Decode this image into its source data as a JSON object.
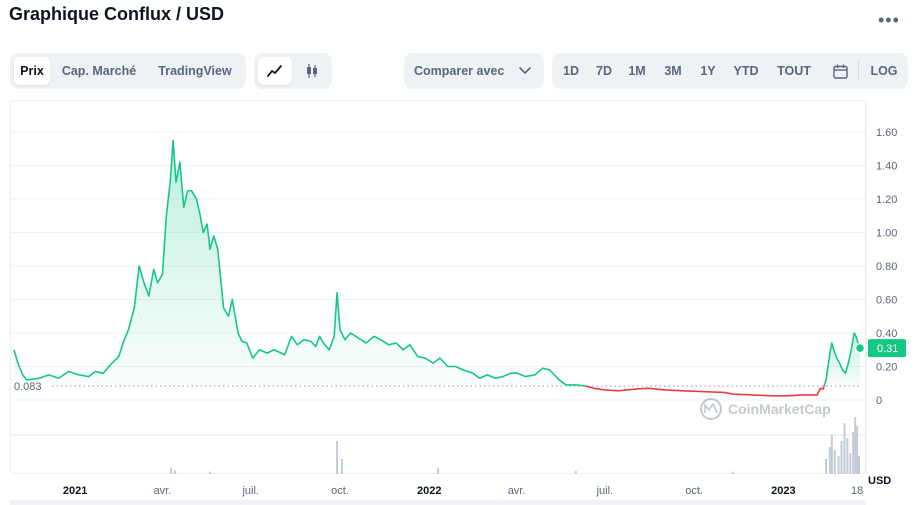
{
  "header": {
    "title": "Graphique Conflux / USD",
    "more_icon": "more-horizontal-icon"
  },
  "tabs": {
    "items": [
      "Prix",
      "Cap. Marché",
      "TradingView"
    ],
    "active": "Prix"
  },
  "chart_type_toggle": {
    "line_icon": "line-chart-icon",
    "candle_icon": "candlestick-icon",
    "active": "line"
  },
  "compare": {
    "label": "Comparer avec",
    "icon": "chevron-down-icon"
  },
  "ranges": {
    "items": [
      "1D",
      "7D",
      "1M",
      "3M",
      "1Y",
      "YTD",
      "TOUT"
    ],
    "calendar_icon": "calendar-icon",
    "log_label": "LOG"
  },
  "watermark": "CoinMarketCap",
  "colors": {
    "up": "#16c784",
    "down": "#ea3943",
    "baseline": "#a6b0c3"
  },
  "chart_data": {
    "type": "line",
    "xlabel": "",
    "ylabel": "",
    "y_unit": "USD",
    "ylim": [
      0,
      1.6
    ],
    "y_ticks": [
      "0",
      "0.20",
      "0.40",
      "0.60",
      "0.80",
      "1.00",
      "1.20",
      "1.40",
      "1.60"
    ],
    "x_range": [
      "2020-10-30",
      "2023-03-21"
    ],
    "x_ticks": [
      {
        "date": "2021-01-01",
        "label": "2021",
        "year": true
      },
      {
        "date": "2021-04-01",
        "label": "avr.",
        "year": false
      },
      {
        "date": "2021-07-01",
        "label": "juil.",
        "year": false
      },
      {
        "date": "2021-10-01",
        "label": "oct.",
        "year": false
      },
      {
        "date": "2022-01-01",
        "label": "2022",
        "year": true
      },
      {
        "date": "2022-04-01",
        "label": "avr.",
        "year": false
      },
      {
        "date": "2022-07-01",
        "label": "juil.",
        "year": false
      },
      {
        "date": "2022-10-01",
        "label": "oct.",
        "year": false
      },
      {
        "date": "2023-01-01",
        "label": "2023",
        "year": true
      },
      {
        "date": "2023-03-18",
        "label": "18",
        "year": false
      }
    ],
    "baseline": {
      "value": 0.083,
      "label": "0.083"
    },
    "current": {
      "value": 0.31,
      "label": "0.31"
    },
    "series": [
      {
        "points": [
          [
            "2020-10-30",
            0.3
          ],
          [
            "2020-11-03",
            0.22
          ],
          [
            "2020-11-08",
            0.15
          ],
          [
            "2020-11-12",
            0.12
          ],
          [
            "2020-11-25",
            0.13
          ],
          [
            "2020-12-05",
            0.15
          ],
          [
            "2020-12-15",
            0.13
          ],
          [
            "2020-12-25",
            0.17
          ],
          [
            "2021-01-05",
            0.15
          ],
          [
            "2021-01-15",
            0.14
          ],
          [
            "2021-01-22",
            0.17
          ],
          [
            "2021-01-30",
            0.16
          ],
          [
            "2021-02-08",
            0.22
          ],
          [
            "2021-02-15",
            0.26
          ],
          [
            "2021-02-20",
            0.35
          ],
          [
            "2021-02-25",
            0.42
          ],
          [
            "2021-03-03",
            0.55
          ],
          [
            "2021-03-08",
            0.8
          ],
          [
            "2021-03-13",
            0.7
          ],
          [
            "2021-03-18",
            0.62
          ],
          [
            "2021-03-23",
            0.78
          ],
          [
            "2021-03-27",
            0.7
          ],
          [
            "2021-04-01",
            0.75
          ],
          [
            "2021-04-05",
            1.1
          ],
          [
            "2021-04-09",
            1.3
          ],
          [
            "2021-04-12",
            1.55
          ],
          [
            "2021-04-15",
            1.3
          ],
          [
            "2021-04-19",
            1.42
          ],
          [
            "2021-04-23",
            1.15
          ],
          [
            "2021-04-27",
            1.25
          ],
          [
            "2021-05-01",
            1.25
          ],
          [
            "2021-05-06",
            1.2
          ],
          [
            "2021-05-10",
            1.1
          ],
          [
            "2021-05-13",
            1.0
          ],
          [
            "2021-05-17",
            1.05
          ],
          [
            "2021-05-20",
            0.9
          ],
          [
            "2021-05-24",
            0.98
          ],
          [
            "2021-05-28",
            0.9
          ],
          [
            "2021-06-03",
            0.55
          ],
          [
            "2021-06-08",
            0.5
          ],
          [
            "2021-06-12",
            0.6
          ],
          [
            "2021-06-18",
            0.4
          ],
          [
            "2021-06-22",
            0.35
          ],
          [
            "2021-06-27",
            0.34
          ],
          [
            "2021-07-03",
            0.25
          ],
          [
            "2021-07-10",
            0.3
          ],
          [
            "2021-07-18",
            0.28
          ],
          [
            "2021-07-25",
            0.3
          ],
          [
            "2021-08-05",
            0.27
          ],
          [
            "2021-08-12",
            0.38
          ],
          [
            "2021-08-18",
            0.33
          ],
          [
            "2021-08-25",
            0.36
          ],
          [
            "2021-09-01",
            0.35
          ],
          [
            "2021-09-06",
            0.32
          ],
          [
            "2021-09-10",
            0.38
          ],
          [
            "2021-09-14",
            0.34
          ],
          [
            "2021-09-20",
            0.3
          ],
          [
            "2021-09-25",
            0.38
          ],
          [
            "2021-09-28",
            0.64
          ],
          [
            "2021-10-01",
            0.42
          ],
          [
            "2021-10-06",
            0.36
          ],
          [
            "2021-10-12",
            0.4
          ],
          [
            "2021-10-20",
            0.37
          ],
          [
            "2021-10-28",
            0.34
          ],
          [
            "2021-11-05",
            0.38
          ],
          [
            "2021-11-12",
            0.36
          ],
          [
            "2021-11-20",
            0.33
          ],
          [
            "2021-11-28",
            0.34
          ],
          [
            "2021-12-05",
            0.3
          ],
          [
            "2021-12-12",
            0.33
          ],
          [
            "2021-12-20",
            0.26
          ],
          [
            "2021-12-28",
            0.25
          ],
          [
            "2022-01-05",
            0.22
          ],
          [
            "2022-01-12",
            0.25
          ],
          [
            "2022-01-20",
            0.2
          ],
          [
            "2022-01-28",
            0.2
          ],
          [
            "2022-02-05",
            0.18
          ],
          [
            "2022-02-15",
            0.16
          ],
          [
            "2022-02-22",
            0.13
          ],
          [
            "2022-03-02",
            0.15
          ],
          [
            "2022-03-10",
            0.13
          ],
          [
            "2022-03-18",
            0.14
          ],
          [
            "2022-03-26",
            0.16
          ],
          [
            "2022-04-02",
            0.16
          ],
          [
            "2022-04-10",
            0.14
          ],
          [
            "2022-04-20",
            0.15
          ],
          [
            "2022-04-28",
            0.19
          ],
          [
            "2022-05-05",
            0.18
          ],
          [
            "2022-05-10",
            0.15
          ],
          [
            "2022-05-15",
            0.12
          ],
          [
            "2022-05-22",
            0.09
          ],
          [
            "2022-06-01",
            0.09
          ],
          [
            "2022-06-10",
            0.085
          ],
          [
            "2022-06-20",
            0.07
          ],
          [
            "2022-07-01",
            0.06
          ],
          [
            "2022-07-15",
            0.055
          ],
          [
            "2022-08-01",
            0.065
          ],
          [
            "2022-08-15",
            0.07
          ],
          [
            "2022-09-01",
            0.06
          ],
          [
            "2022-09-20",
            0.055
          ],
          [
            "2022-10-10",
            0.05
          ],
          [
            "2022-11-01",
            0.045
          ],
          [
            "2022-11-10",
            0.035
          ],
          [
            "2022-12-01",
            0.03
          ],
          [
            "2022-12-20",
            0.025
          ],
          [
            "2023-01-05",
            0.025
          ],
          [
            "2023-01-20",
            0.03
          ],
          [
            "2023-02-05",
            0.03
          ],
          [
            "2023-02-08",
            0.07
          ],
          [
            "2023-02-11",
            0.065
          ],
          [
            "2023-02-14",
            0.12
          ],
          [
            "2023-02-16",
            0.2
          ],
          [
            "2023-02-18",
            0.28
          ],
          [
            "2023-02-20",
            0.34
          ],
          [
            "2023-02-22",
            0.3
          ],
          [
            "2023-02-25",
            0.25
          ],
          [
            "2023-02-28",
            0.22
          ],
          [
            "2023-03-03",
            0.18
          ],
          [
            "2023-03-06",
            0.16
          ],
          [
            "2023-03-09",
            0.22
          ],
          [
            "2023-03-12",
            0.3
          ],
          [
            "2023-03-15",
            0.4
          ],
          [
            "2023-03-17",
            0.38
          ],
          [
            "2023-03-19",
            0.34
          ],
          [
            "2023-03-21",
            0.31
          ]
        ]
      }
    ],
    "volume": [
      [
        "2021-04-10",
        0.1
      ],
      [
        "2021-04-14",
        0.06
      ],
      [
        "2021-05-20",
        0.04
      ],
      [
        "2021-09-28",
        0.55
      ],
      [
        "2021-10-03",
        0.25
      ],
      [
        "2022-01-10",
        0.1
      ],
      [
        "2022-06-01",
        0.05
      ],
      [
        "2022-11-10",
        0.04
      ],
      [
        "2023-02-14",
        0.25
      ],
      [
        "2023-02-18",
        0.45
      ],
      [
        "2023-02-20",
        0.65
      ],
      [
        "2023-02-23",
        0.4
      ],
      [
        "2023-02-27",
        0.3
      ],
      [
        "2023-03-02",
        0.55
      ],
      [
        "2023-03-05",
        0.85
      ],
      [
        "2023-03-08",
        0.6
      ],
      [
        "2023-03-11",
        0.35
      ],
      [
        "2023-03-14",
        0.7
      ],
      [
        "2023-03-16",
        0.95
      ],
      [
        "2023-03-18",
        0.8
      ],
      [
        "2023-03-20",
        0.3
      ]
    ]
  }
}
